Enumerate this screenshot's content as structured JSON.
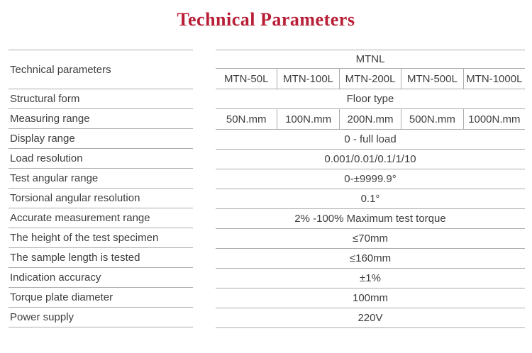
{
  "page": {
    "title": "Technical Parameters",
    "title_color": "#b81e35",
    "line_color": "#acacac",
    "text_color": "#3e3e3e"
  },
  "table": {
    "header": {
      "left_label": "Technical parameters",
      "group_label": "MTNL",
      "models": [
        "MTN-50L",
        "MTN-100L",
        "MTN-200L",
        "MTN-500L",
        "MTN-1000L"
      ]
    },
    "rows": [
      {
        "label": "Structural form",
        "value": "Floor type"
      },
      {
        "label": "Measuring range",
        "values": [
          "50N.mm",
          "100N.mm",
          "200N.mm",
          "500N.mm",
          "1000N.mm"
        ]
      },
      {
        "label": "Display range",
        "value": "0 - full load"
      },
      {
        "label": "Load resolution",
        "value": "0.001/0.01/0.1/1/10"
      },
      {
        "label": "Test angular range",
        "value": "0-±9999.9°"
      },
      {
        "label": "Torsional angular resolution",
        "value": "0.1°"
      },
      {
        "label": "Accurate measurement range",
        "value": "2% -100% Maximum test torque"
      },
      {
        "label": "The height of the test specimen",
        "value": "≤70mm"
      },
      {
        "label": "The sample length is tested",
        "value": "≤160mm"
      },
      {
        "label": "Indication accuracy",
        "value": "±1%"
      },
      {
        "label": "Torque plate diameter",
        "value": "100mm"
      },
      {
        "label": "Power supply",
        "value": "220V"
      }
    ]
  }
}
